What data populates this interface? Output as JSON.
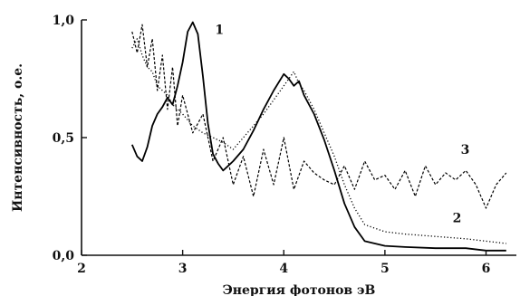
{
  "chart_data": {
    "type": "line",
    "title": "",
    "xlabel": "Энергия фотонов эВ",
    "ylabel": "Интенсивность, о.е.",
    "xlim": [
      2.0,
      6.3
    ],
    "ylim": [
      0.0,
      1.0
    ],
    "x_ticks": [
      2,
      3,
      4,
      5,
      6
    ],
    "x_tick_labels": [
      "2",
      "3",
      "4",
      "5",
      "6"
    ],
    "y_ticks": [
      0.0,
      0.5,
      1.0
    ],
    "y_tick_labels": [
      "0,0",
      "0,5",
      "1,0"
    ],
    "grid": false,
    "legend": "none",
    "series": [
      {
        "name": "1",
        "style": "solid",
        "color": "#000000",
        "x": [
          2.5,
          2.55,
          2.6,
          2.65,
          2.7,
          2.75,
          2.8,
          2.85,
          2.9,
          2.95,
          3.0,
          3.05,
          3.1,
          3.15,
          3.2,
          3.25,
          3.3,
          3.35,
          3.4,
          3.45,
          3.5,
          3.6,
          3.7,
          3.8,
          3.9,
          4.0,
          4.05,
          4.1,
          4.15,
          4.2,
          4.3,
          4.4,
          4.5,
          4.6,
          4.7,
          4.8,
          5.0,
          5.2,
          5.5,
          5.8,
          6.0,
          6.2
        ],
        "y": [
          0.47,
          0.42,
          0.4,
          0.46,
          0.55,
          0.6,
          0.63,
          0.67,
          0.64,
          0.72,
          0.82,
          0.95,
          0.99,
          0.94,
          0.76,
          0.56,
          0.43,
          0.39,
          0.36,
          0.38,
          0.4,
          0.45,
          0.53,
          0.62,
          0.7,
          0.77,
          0.75,
          0.72,
          0.74,
          0.68,
          0.6,
          0.49,
          0.36,
          0.22,
          0.12,
          0.06,
          0.04,
          0.035,
          0.03,
          0.03,
          0.02,
          0.02
        ]
      },
      {
        "name": "2",
        "style": "dotted",
        "color": "#000000",
        "x": [
          2.5,
          2.55,
          2.6,
          2.65,
          2.7,
          2.75,
          2.8,
          2.85,
          2.9,
          3.0,
          3.1,
          3.2,
          3.3,
          3.4,
          3.5,
          3.6,
          3.7,
          3.8,
          3.9,
          4.0,
          4.1,
          4.15,
          4.2,
          4.3,
          4.4,
          4.5,
          4.6,
          4.7,
          4.8,
          5.0,
          5.2,
          5.5,
          5.8,
          6.0,
          6.2
        ],
        "y": [
          0.88,
          0.92,
          0.85,
          0.8,
          0.78,
          0.72,
          0.7,
          0.68,
          0.64,
          0.6,
          0.55,
          0.52,
          0.5,
          0.48,
          0.45,
          0.5,
          0.55,
          0.6,
          0.66,
          0.72,
          0.78,
          0.73,
          0.7,
          0.62,
          0.52,
          0.42,
          0.3,
          0.2,
          0.13,
          0.1,
          0.09,
          0.08,
          0.07,
          0.06,
          0.05
        ]
      },
      {
        "name": "3",
        "style": "dashed",
        "color": "#000000",
        "x": [
          2.5,
          2.55,
          2.6,
          2.65,
          2.7,
          2.75,
          2.8,
          2.85,
          2.9,
          2.95,
          3.0,
          3.1,
          3.2,
          3.3,
          3.4,
          3.5,
          3.6,
          3.7,
          3.8,
          3.9,
          4.0,
          4.1,
          4.2,
          4.3,
          4.4,
          4.5,
          4.6,
          4.7,
          4.8,
          4.9,
          5.0,
          5.1,
          5.2,
          5.3,
          5.4,
          5.5,
          5.6,
          5.7,
          5.8,
          5.9,
          6.0,
          6.1,
          6.2
        ],
        "y": [
          0.95,
          0.86,
          0.98,
          0.8,
          0.92,
          0.7,
          0.85,
          0.62,
          0.8,
          0.55,
          0.68,
          0.52,
          0.6,
          0.4,
          0.5,
          0.3,
          0.42,
          0.25,
          0.45,
          0.3,
          0.5,
          0.28,
          0.4,
          0.35,
          0.32,
          0.3,
          0.38,
          0.28,
          0.4,
          0.32,
          0.34,
          0.28,
          0.36,
          0.25,
          0.38,
          0.3,
          0.35,
          0.32,
          0.36,
          0.3,
          0.2,
          0.3,
          0.35
        ]
      }
    ]
  }
}
